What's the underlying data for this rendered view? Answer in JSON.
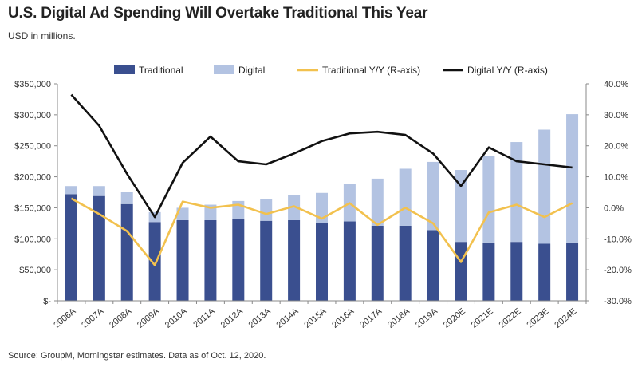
{
  "header": {
    "title": "U.S. Digital Ad Spending Will Overtake Traditional This Year",
    "subtitle": "USD in millions."
  },
  "footer": {
    "source": "Source: GroupM, Morningstar estimates. Data as of Oct. 12, 2020."
  },
  "colors": {
    "traditional": "#3a4f8f",
    "digital": "#b3c3e2",
    "traditional_yy": "#f2c14e",
    "digital_yy": "#111111",
    "axis": "#888888"
  },
  "chart_data": {
    "type": "bar",
    "stacked": true,
    "title": "U.S. Digital Ad Spending Will Overtake Traditional This Year",
    "subtitle": "USD in millions.",
    "categories": [
      "2006A",
      "2007A",
      "2008A",
      "2009A",
      "2010A",
      "2011A",
      "2012A",
      "2013A",
      "2014A",
      "2015A",
      "2016A",
      "2017A",
      "2018A",
      "2019A",
      "2020E",
      "2021E",
      "2022E",
      "2023E",
      "2024E"
    ],
    "series": [
      {
        "name": "Traditional",
        "kind": "bar",
        "axis": "left",
        "values": [
          172000,
          169000,
          156000,
          127000,
          130000,
          130000,
          132000,
          129000,
          130000,
          126000,
          128000,
          121000,
          121000,
          114000,
          95000,
          94000,
          95000,
          92000,
          94000
        ]
      },
      {
        "name": "Digital",
        "kind": "bar",
        "axis": "left",
        "values": [
          13000,
          16000,
          19000,
          16000,
          20000,
          25000,
          29000,
          35000,
          40000,
          48000,
          61000,
          76000,
          92000,
          110000,
          116000,
          140000,
          161000,
          184000,
          207000
        ]
      },
      {
        "name": "Traditional Y/Y (R-axis)",
        "kind": "line",
        "axis": "right",
        "values": [
          3.0,
          -2.0,
          -7.5,
          -18.5,
          2.0,
          0.0,
          1.0,
          -2.0,
          0.5,
          -3.5,
          1.5,
          -5.5,
          0.0,
          -5.0,
          -17.5,
          -1.5,
          1.0,
          -3.0,
          1.5
        ]
      },
      {
        "name": "Digital Y/Y (R-axis)",
        "kind": "line",
        "axis": "right",
        "values": [
          36.5,
          26.5,
          11.0,
          -3.0,
          14.5,
          23.0,
          15.0,
          14.0,
          17.5,
          21.5,
          24.0,
          24.5,
          23.5,
          17.5,
          7.0,
          19.5,
          15.0,
          14.0,
          13.0
        ]
      }
    ],
    "y_left": {
      "min": 0,
      "max": 350000,
      "ticks": [
        0,
        50000,
        100000,
        150000,
        200000,
        250000,
        300000,
        350000
      ],
      "tick_labels": [
        "$-",
        "$50,000",
        "$100,000",
        "$150,000",
        "$200,000",
        "$250,000",
        "$300,000",
        "$350,000"
      ]
    },
    "y_right": {
      "min": -30,
      "max": 40,
      "ticks": [
        -30,
        -20,
        -10,
        0,
        10,
        20,
        30,
        40
      ],
      "tick_labels": [
        "-30.0%",
        "-20.0%",
        "-10.0%",
        "0.0%",
        "10.0%",
        "20.0%",
        "30.0%",
        "40.0%"
      ]
    },
    "legend": {
      "placement": "top",
      "items": [
        "Traditional",
        "Digital",
        "Traditional Y/Y (R-axis)",
        "Digital Y/Y (R-axis)"
      ]
    },
    "grid": false
  }
}
